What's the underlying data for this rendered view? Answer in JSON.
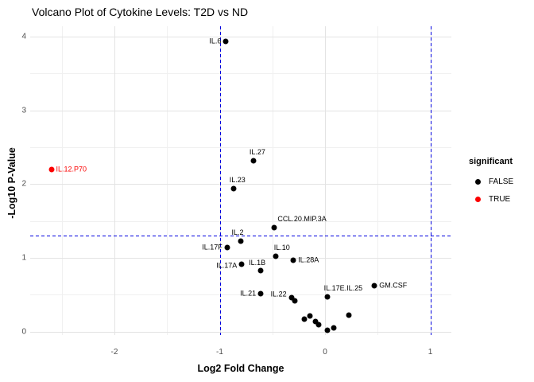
{
  "chart_data": {
    "type": "scatter",
    "title": "Volcano Plot of Cytokine Levels: T2D vs ND",
    "xlabel": "Log2 Fold Change",
    "ylabel": "-Log10 P-Value",
    "xlim": [
      -2.8,
      1.2
    ],
    "ylim": [
      -0.045,
      4.14
    ],
    "x_ticks": [
      -2,
      -1,
      0,
      1
    ],
    "x_tick_labels": [
      "-2",
      "-1",
      "0",
      "1"
    ],
    "y_ticks": [
      0,
      1,
      2,
      3,
      4
    ],
    "y_tick_labels": [
      "0",
      "1",
      "2",
      "3",
      "4"
    ],
    "x_minor_ticks": [
      -2.5,
      -1.5,
      -0.5,
      0.5
    ],
    "y_minor_ticks": [
      0.5,
      1.5,
      2.5,
      3.5
    ],
    "grid": true,
    "threshold_lines": {
      "horizontal_y": 1.3,
      "vertical_x": [
        -1,
        1
      ],
      "style": "dashed",
      "color": "#0000e0"
    },
    "legend": {
      "title": "significant",
      "position": "right",
      "entries": [
        {
          "label": "FALSE",
          "color": "#000000"
        },
        {
          "label": "TRUE",
          "color": "#fb0000"
        }
      ]
    },
    "series": [
      {
        "name": "FALSE",
        "color": "#000000",
        "points": [
          {
            "name": "IL.6",
            "x": -0.94,
            "y": 3.94,
            "label_pos": "left"
          },
          {
            "name": "IL.27",
            "x": -0.68,
            "y": 2.32,
            "label_pos": "above",
            "dx": 5
          },
          {
            "name": "IL.23",
            "x": -0.87,
            "y": 1.94,
            "label_pos": "above",
            "dx": 5
          },
          {
            "name": "CCL.20.MIP.3A",
            "x": -0.48,
            "y": 1.41,
            "label_pos": "above-right",
            "dx": 8
          },
          {
            "name": "IL.2",
            "x": -0.8,
            "y": 1.23,
            "label_pos": "above",
            "dx": -4
          },
          {
            "name": "IL.17F",
            "x": -0.93,
            "y": 1.14,
            "label_pos": "left"
          },
          {
            "name": "IL.10",
            "x": -0.47,
            "y": 1.02,
            "label_pos": "above",
            "dx": 8
          },
          {
            "name": "IL.28A",
            "x": -0.3,
            "y": 0.97,
            "label_pos": "right"
          },
          {
            "name": "IL.17A",
            "x": -0.79,
            "y": 0.91,
            "label_pos": "left",
            "dy": 2
          },
          {
            "name": "IL.1B",
            "x": -0.61,
            "y": 0.83,
            "label_pos": "above-left"
          },
          {
            "name": "IL.21",
            "x": -0.61,
            "y": 0.52,
            "label_pos": "left"
          },
          {
            "name": "IL.22",
            "x": -0.32,
            "y": 0.46,
            "label_pos": "left",
            "dy": -4
          },
          {
            "name": "",
            "x": -0.29,
            "y": 0.42
          },
          {
            "name": "IL.17E.IL.25",
            "x": 0.02,
            "y": 0.47,
            "label_pos": "above-right"
          },
          {
            "name": "GM.CSF",
            "x": 0.47,
            "y": 0.62,
            "label_pos": "right"
          },
          {
            "name": "",
            "x": -0.2,
            "y": 0.17
          },
          {
            "name": "",
            "x": -0.14,
            "y": 0.21
          },
          {
            "name": "",
            "x": -0.09,
            "y": 0.14
          },
          {
            "name": "",
            "x": -0.06,
            "y": 0.09
          },
          {
            "name": "",
            "x": 0.02,
            "y": 0.02
          },
          {
            "name": "",
            "x": 0.08,
            "y": 0.05
          },
          {
            "name": "",
            "x": 0.23,
            "y": 0.22
          }
        ]
      },
      {
        "name": "TRUE",
        "color": "#fb0000",
        "points": [
          {
            "name": "IL.12.P70",
            "x": -2.6,
            "y": 2.2,
            "label_pos": "right"
          }
        ]
      }
    ]
  },
  "colors": {
    "background": "#ffffff",
    "grid_major": "#e3e3e3",
    "grid_minor": "#f0f0f0",
    "threshold": "#0000e0",
    "tick_label": "#4d4d4d",
    "point_false": "#000000",
    "point_true": "#fb0000"
  }
}
